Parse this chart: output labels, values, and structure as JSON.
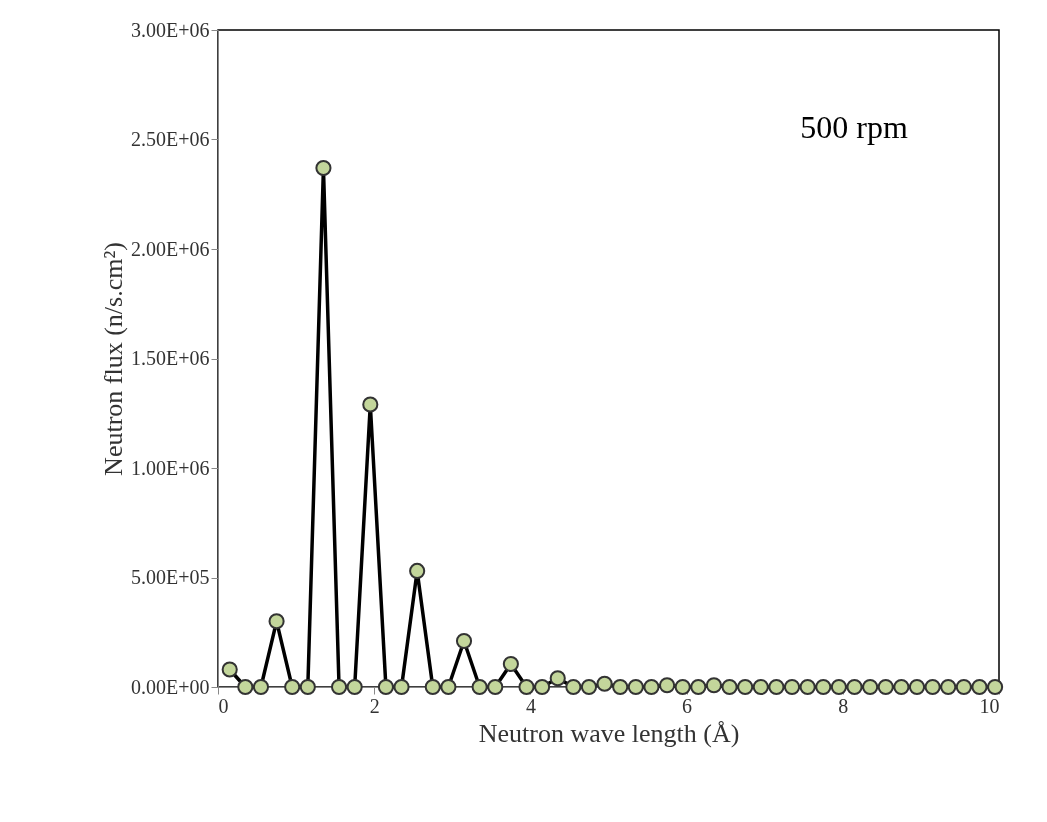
{
  "chart_data": {
    "type": "line",
    "xlabel": "Neutron wave length (Å)",
    "ylabel": "Neutron flux (n/s.cm²)",
    "annotations": [
      "500 rpm"
    ],
    "x": [
      0.15,
      0.35,
      0.55,
      0.75,
      0.95,
      1.15,
      1.35,
      1.55,
      1.75,
      1.95,
      2.15,
      2.35,
      2.55,
      2.75,
      2.95,
      3.15,
      3.35,
      3.55,
      3.75,
      3.95,
      4.15,
      4.35,
      4.55,
      4.75,
      4.95,
      5.15,
      5.35,
      5.55,
      5.75,
      5.95,
      6.15,
      6.35,
      6.55,
      6.75,
      6.95,
      7.15,
      7.35,
      7.55,
      7.75,
      7.95,
      8.15,
      8.35,
      8.55,
      8.75,
      8.95,
      9.15,
      9.35,
      9.55,
      9.75,
      9.95
    ],
    "series": [
      {
        "color": "#c3d69b",
        "values": [
          80000,
          0,
          0,
          300000,
          0,
          0,
          2370000,
          0,
          0,
          1290000,
          0,
          0,
          530000,
          0,
          0,
          210000,
          0,
          0,
          105000,
          0,
          0,
          40000,
          0,
          0,
          15000,
          0,
          0,
          0,
          8000,
          0,
          0,
          8000,
          0,
          0,
          0,
          0,
          0,
          0,
          0,
          0,
          0,
          0,
          0,
          0,
          0,
          0,
          0,
          0,
          0,
          0
        ]
      }
    ],
    "marker": "circle",
    "line_style": "solid",
    "xlim": [
      0,
      10
    ],
    "xticks": [
      0,
      2,
      4,
      6,
      8,
      10
    ],
    "ylim": [
      0,
      3000000
    ],
    "yticks": [
      {
        "value": 0,
        "label": "0.00E+00"
      },
      {
        "value": 500000,
        "label": "5.00E+05"
      },
      {
        "value": 1000000,
        "label": "1.00E+06"
      },
      {
        "value": 1500000,
        "label": "1.50E+06"
      },
      {
        "value": 2000000,
        "label": "2.00E+06"
      },
      {
        "value": 2500000,
        "label": "2.50E+06"
      },
      {
        "value": 3000000,
        "label": "3.00E+06"
      }
    ]
  }
}
